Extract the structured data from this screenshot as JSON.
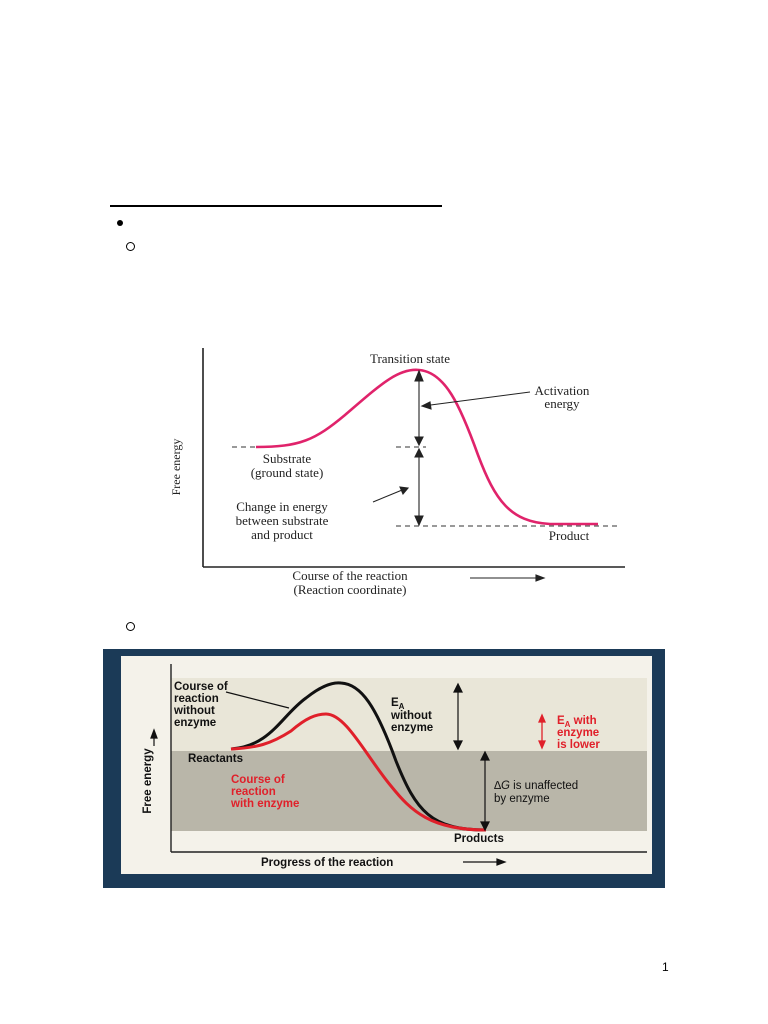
{
  "figure1": {
    "labels": {
      "transition_state": "Transition state",
      "activation_1": "Activation",
      "activation_2": "energy",
      "substrate_1": "Substrate",
      "substrate_2": "(ground state)",
      "change_1": "Change in energy",
      "change_2": "between substrate",
      "change_3": "and product",
      "product": "Product",
      "ylabel": "Free energy",
      "xlabel_1": "Course of the reaction",
      "xlabel_2": "(Reaction coordinate)"
    },
    "colors": {
      "curve": "#e0236b"
    }
  },
  "figure2": {
    "labels": {
      "course_without_1": "Course of",
      "course_without_2": "reaction",
      "course_without_3": "without",
      "course_without_4": "enzyme",
      "ea_without_1": "E",
      "ea_without_sub": "A",
      "ea_without_2": "without",
      "ea_without_3": "enzyme",
      "ea_with_1": "E",
      "ea_with_sub": "A",
      "ea_with_2": " with",
      "ea_with_3": "enzyme",
      "ea_with_4": "is lower",
      "reactants": "Reactants",
      "course_with_1": "Course of",
      "course_with_2": "reaction",
      "course_with_3": "with enzyme",
      "delta_g_sym": "∆G",
      "delta_g_1": " is unaffected",
      "delta_g_2": "by enzyme",
      "products": "Products",
      "ylabel": "Free energy",
      "xlabel": "Progress of the reaction"
    },
    "colors": {
      "enzyme": "#e0202a",
      "no_enzyme": "#111111",
      "frame": "#1b3a57"
    }
  },
  "footer": {
    "page_number": "1"
  }
}
